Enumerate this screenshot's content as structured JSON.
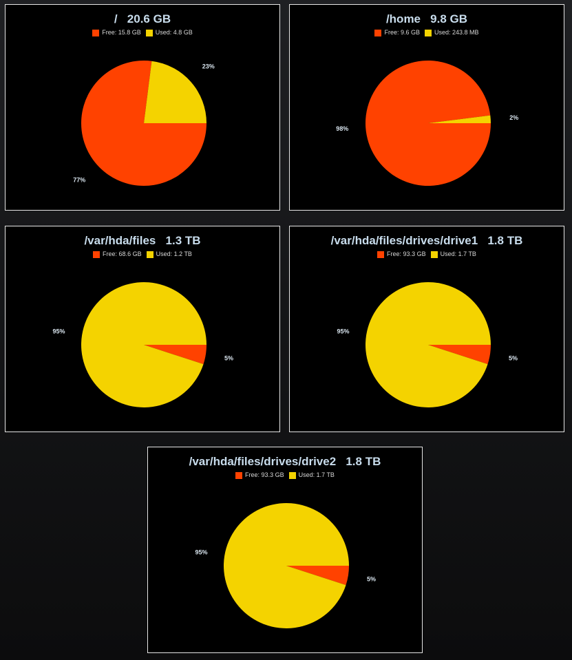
{
  "colors": {
    "free": "#ff4200",
    "used": "#f4d300",
    "panel_bg": "#000000",
    "border": "#e8e8e8",
    "title": "#c8dcec"
  },
  "chart_data": [
    {
      "type": "pie",
      "title": "/   20.6 GB",
      "categories": [
        "Free: 15.8 GB",
        "Used: 4.8 GB"
      ],
      "values": [
        77,
        23
      ],
      "labels": [
        "77%",
        "23%"
      ],
      "legend": "top-center"
    },
    {
      "type": "pie",
      "title": "/home   9.8 GB",
      "categories": [
        "Free: 9.6 GB",
        "Used: 243.8 MB"
      ],
      "values": [
        98,
        2
      ],
      "labels": [
        "98%",
        "2%"
      ],
      "legend": "top-center"
    },
    {
      "type": "pie",
      "title": "/var/hda/files   1.3 TB",
      "categories": [
        "Free: 68.6 GB",
        "Used: 1.2 TB"
      ],
      "values": [
        5,
        95
      ],
      "labels": [
        "5%",
        "95%"
      ],
      "legend": "top-center"
    },
    {
      "type": "pie",
      "title": "/var/hda/files/drives/drive1   1.8 TB",
      "categories": [
        "Free: 93.3 GB",
        "Used: 1.7 TB"
      ],
      "values": [
        5,
        95
      ],
      "labels": [
        "5%",
        "95%"
      ],
      "legend": "top-center"
    },
    {
      "type": "pie",
      "title": "/var/hda/files/drives/drive2   1.8 TB",
      "categories": [
        "Free: 93.3 GB",
        "Used: 1.7 TB"
      ],
      "values": [
        5,
        95
      ],
      "labels": [
        "5%",
        "95%"
      ],
      "legend": "top-center"
    }
  ]
}
